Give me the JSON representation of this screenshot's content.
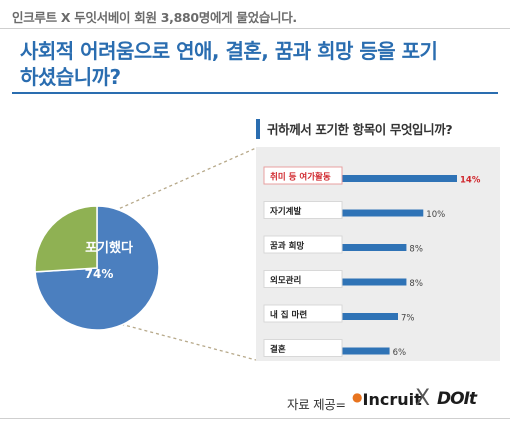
{
  "caption": "인크루트 X 두잇서베이 회원 3,880명에게 물었습니다.",
  "headline": "사회적 어려움으로 연애, 결혼, 꿈과 희망 등을 포기하셨습니까?",
  "panel_title": "귀하께서 포기한 항목이 무엇입니까?",
  "source_label": "자료 제공=",
  "logos": {
    "incruit": "Incruit",
    "x": "X",
    "doit": "DOIt"
  },
  "colors": {
    "blue": "#4b7fbf",
    "green": "#8fb153",
    "bar": "#2f73b6",
    "accent": "#2a6db0",
    "highlight": "#d0282e"
  },
  "chart_data": [
    {
      "type": "pie",
      "slices": [
        {
          "name": "포기했다",
          "value": 74,
          "label": "74%",
          "color": "#4b7fbf"
        },
        {
          "name": "",
          "value": 26,
          "label": "",
          "color": "#8fb153"
        }
      ]
    },
    {
      "type": "bar",
      "orientation": "horizontal",
      "categories": [
        "취미 등 여가활동",
        "자기계발",
        "꿈과 희망",
        "외모관리",
        "내 집 마련",
        "결혼"
      ],
      "values": [
        14,
        10,
        8,
        8,
        7,
        6
      ],
      "value_labels": [
        "14%",
        "10%",
        "8%",
        "8%",
        "7%",
        "6%"
      ],
      "highlight_index": 0
    }
  ]
}
